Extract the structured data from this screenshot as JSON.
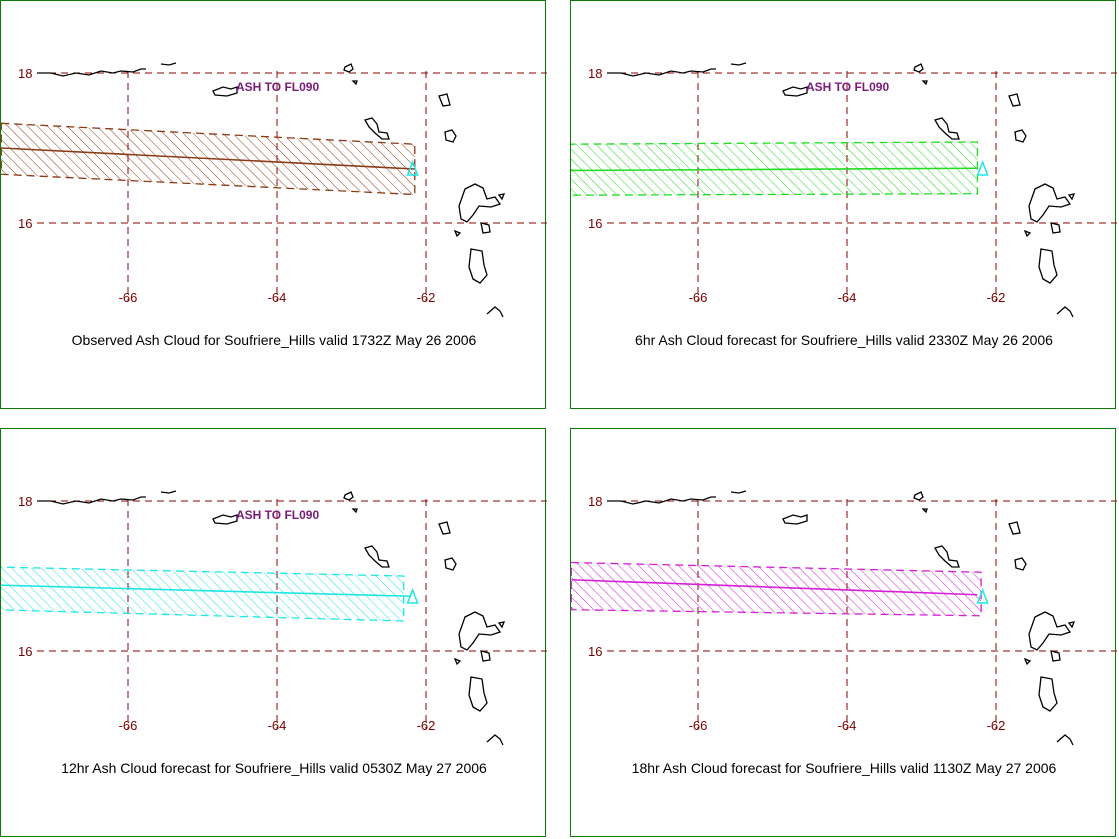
{
  "panels": [
    {
      "caption": "Observed Ash Cloud for Soufriere_Hills valid 1732Z May 26 2006",
      "label": "ASH TO FL090",
      "color": "#8b3a16",
      "polygon": [
        [
          -67.7,
          17.33
        ],
        [
          -62.15,
          17.05
        ],
        [
          -62.15,
          16.38
        ],
        [
          -67.7,
          16.65
        ]
      ],
      "axis": [
        [
          -67.7,
          17.0
        ],
        [
          -62.15,
          16.72
        ]
      ]
    },
    {
      "caption": "6hr Ash Cloud forecast for Soufriere_Hills valid 2330Z May 26 2006",
      "label": "ASH TO FL090",
      "color": "#22dd22",
      "polygon": [
        [
          -67.75,
          17.05
        ],
        [
          -62.25,
          17.08
        ],
        [
          -62.25,
          16.39
        ],
        [
          -67.75,
          16.37
        ]
      ],
      "axis": [
        [
          -67.75,
          16.7
        ],
        [
          -62.25,
          16.73
        ]
      ]
    },
    {
      "caption": "12hr Ash Cloud forecast for Soufriere_Hills valid 0530Z May 27 2006",
      "label": "ASH TO FL090",
      "color": "#1ee6e6",
      "polygon": [
        [
          -67.8,
          17.12
        ],
        [
          -62.3,
          17.0
        ],
        [
          -62.3,
          16.4
        ],
        [
          -67.8,
          16.55
        ]
      ],
      "axis": [
        [
          -67.8,
          16.88
        ],
        [
          -62.2,
          16.73
        ]
      ]
    },
    {
      "caption": "18hr Ash Cloud forecast for Soufriere_Hills valid 1130Z May 27 2006",
      "label": "",
      "color": "#d61fd6",
      "polygon": [
        [
          -67.7,
          17.18
        ],
        [
          -62.2,
          17.05
        ],
        [
          -62.2,
          16.47
        ],
        [
          -67.7,
          16.55
        ]
      ],
      "axis": [
        [
          -67.7,
          16.95
        ],
        [
          -62.25,
          16.75
        ]
      ]
    }
  ],
  "map": {
    "lat_ticks": [
      "16",
      "18"
    ],
    "lon_ticks": [
      "-66",
      "-64",
      "-62"
    ],
    "grid_color": "#8b0000",
    "volcano": [
      -62.18,
      16.72
    ],
    "volcano_color": "#1ee6e6"
  }
}
